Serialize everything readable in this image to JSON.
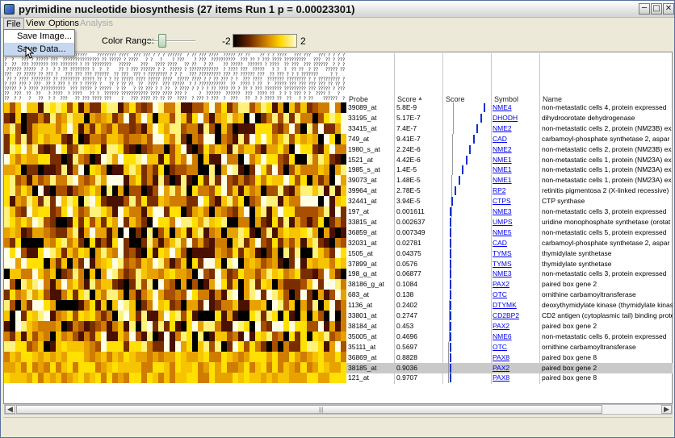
{
  "window": {
    "title": "pyrimidine nucleotide biosynthesis (27 items Run 1  p = 0.00023301)",
    "min_icon": "minimize-icon",
    "max_icon": "maximize-icon",
    "close_icon": "close-icon"
  },
  "menu": {
    "items": [
      {
        "label": "File"
      },
      {
        "label": "View"
      },
      {
        "label": "Options"
      },
      {
        "label": "Analysis"
      }
    ],
    "file_dropdown": [
      "Save Image...",
      "Save Data..."
    ]
  },
  "toolbar": {
    "color_range_label": "Color Range:",
    "range_min": "-2",
    "range_max": "2",
    "scale_colors": [
      "#000000",
      "#6b2600",
      "#d98a00",
      "#ffd800",
      "#fffad0"
    ]
  },
  "table": {
    "headers": {
      "probe": "Probe",
      "score": "Score",
      "score_bar": "Score",
      "symbol": "Symbol",
      "name": "Name"
    },
    "rows": [
      {
        "probe": "39089_at",
        "score": "5.8E-9",
        "symbol": "NME4",
        "name": "non-metastatic cells 4, protein expressed"
      },
      {
        "probe": "33195_at",
        "score": "5.17E-7",
        "symbol": "DHODH",
        "name": "dihydroorotate dehydrogenase"
      },
      {
        "probe": "33415_at",
        "score": "7.4E-7",
        "symbol": "NME2",
        "name": "non-metastatic cells 2, protein (NM23B) ex"
      },
      {
        "probe": "749_at",
        "score": "9.41E-7",
        "symbol": "CAD",
        "name": "carbamoyl-phosphate synthetase 2, aspar"
      },
      {
        "probe": "1980_s_at",
        "score": "2.24E-6",
        "symbol": "NME2",
        "name": "non-metastatic cells 2, protein (NM23B) ex"
      },
      {
        "probe": "1521_at",
        "score": "4.42E-6",
        "symbol": "NME1",
        "name": "non-metastatic cells 1, protein (NM23A) ex"
      },
      {
        "probe": "1985_s_at",
        "score": "1.4E-5",
        "symbol": "NME1",
        "name": "non-metastatic cells 1, protein (NM23A) ex"
      },
      {
        "probe": "39073_at",
        "score": "1.48E-5",
        "symbol": "NME1",
        "name": "non-metastatic cells 1, protein (NM23A) ex"
      },
      {
        "probe": "39964_at",
        "score": "2.78E-5",
        "symbol": "RP2",
        "name": "retinitis pigmentosa 2 (X-linked recessive)"
      },
      {
        "probe": "32441_at",
        "score": "3.94E-5",
        "symbol": "CTPS",
        "name": "CTP synthase"
      },
      {
        "probe": "197_at",
        "score": "0.001611",
        "symbol": "NME3",
        "name": "non-metastatic cells 3, protein expressed"
      },
      {
        "probe": "33815_at",
        "score": "0.002637",
        "symbol": "UMPS",
        "name": "uridine monophosphate synthetase (orotat"
      },
      {
        "probe": "36859_at",
        "score": "0.007349",
        "symbol": "NME5",
        "name": "non-metastatic cells 5, protein expressed"
      },
      {
        "probe": "32031_at",
        "score": "0.02781",
        "symbol": "CAD",
        "name": "carbamoyl-phosphate synthetase 2, aspar"
      },
      {
        "probe": "1505_at",
        "score": "0.04375",
        "symbol": "TYMS",
        "name": "thymidylate synthetase"
      },
      {
        "probe": "37899_at",
        "score": "0.0576",
        "symbol": "TYMS",
        "name": "thymidylate synthetase"
      },
      {
        "probe": "198_g_at",
        "score": "0.06877",
        "symbol": "NME3",
        "name": "non-metastatic cells 3, protein expressed"
      },
      {
        "probe": "38186_g_at",
        "score": "0.1084",
        "symbol": "PAX2",
        "name": "paired box gene 2"
      },
      {
        "probe": "683_at",
        "score": "0.138",
        "symbol": "OTC",
        "name": "ornithine carbamoyltransferase"
      },
      {
        "probe": "1136_at",
        "score": "0.2402",
        "symbol": "DTYMK",
        "name": "deoxythymidylate kinase (thymidylate kinas"
      },
      {
        "probe": "33801_at",
        "score": "0.2747",
        "symbol": "CD2BP2",
        "name": "CD2 antigen (cytoplasmic tail) binding prote"
      },
      {
        "probe": "38184_at",
        "score": "0.453",
        "symbol": "PAX2",
        "name": "paired box gene 2"
      },
      {
        "probe": "35005_at",
        "score": "0.4696",
        "symbol": "NME6",
        "name": "non-metastatic cells 6, protein expressed"
      },
      {
        "probe": "35111_at",
        "score": "0.5697",
        "symbol": "OTC",
        "name": "ornithine carbamoyltransferase"
      },
      {
        "probe": "36869_at",
        "score": "0.8828",
        "symbol": "PAX8",
        "name": "paired box gene 8"
      },
      {
        "probe": "38185_at",
        "score": "0.9036",
        "symbol": "PAX2",
        "name": "paired box gene 2"
      },
      {
        "probe": "121_at",
        "score": "0.9707",
        "symbol": "PAX8",
        "name": "paired box gene 8"
      }
    ]
  },
  "heatmap": {
    "rows": 27,
    "cols": 60,
    "palette": [
      "#000000",
      "#4a1000",
      "#7a2e00",
      "#a84f00",
      "#d07c00",
      "#e8a200",
      "#f6c400",
      "#ffe000",
      "#fff27a",
      "#ffffe6"
    ]
  },
  "scrollbar": {
    "left_icon": "arrow-left-icon",
    "right_icon": "arrow-right-icon",
    "grip": "|||"
  }
}
